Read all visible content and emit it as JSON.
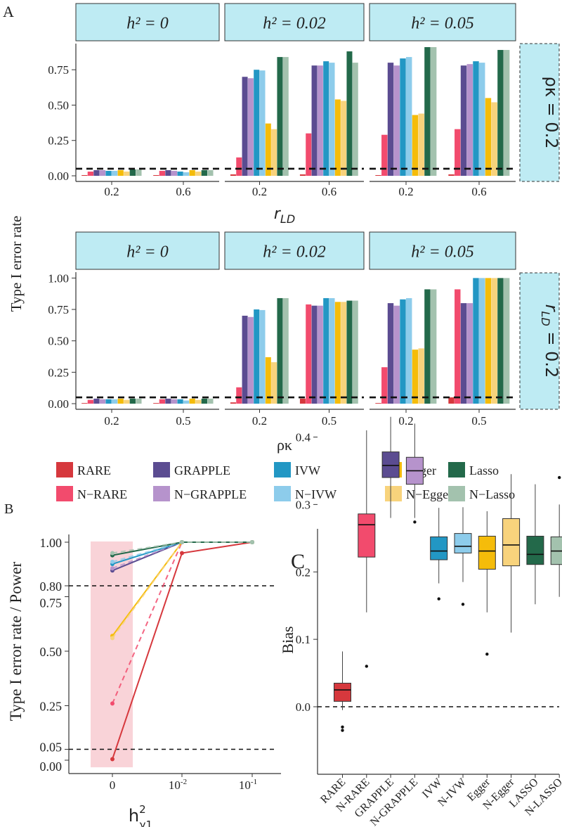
{
  "colors": {
    "RARE": "#D6383D",
    "N-RARE": "#F24B6D",
    "GRAPPLE": "#5B4C91",
    "N-GRAPPLE": "#B693CC",
    "IVW": "#2297C4",
    "N-IVW": "#8DCCEB",
    "Egger": "#F5BC0A",
    "N-Egger": "#F8D37C",
    "Lasso": "#23694A",
    "N-Lasso": "#A3C2AE",
    "strip": "#BEEBF3",
    "band": "#F9D3D8"
  },
  "panel_labels": {
    "a": "A",
    "b": "B",
    "c": "C"
  },
  "chart_data": [
    {
      "id": "A-top",
      "type": "bar",
      "ylabel": "Type I error rate",
      "xlabel": "r_LD",
      "xlabel_parts": {
        "main": "r",
        "sub": "LD"
      },
      "row_strip": "ρκ = 0.2",
      "yticks": [
        "0.00",
        "0.25",
        "0.50",
        "0.75"
      ],
      "ylim": [
        0,
        0.92
      ],
      "hline": 0.05,
      "series_names": [
        "RARE",
        "N-RARE",
        "GRAPPLE",
        "N-GRAPPLE",
        "IVW",
        "N-IVW",
        "Egger",
        "N-Egger",
        "Lasso",
        "N-Lasso"
      ],
      "facets": [
        {
          "strip": "h² = 0",
          "categories": [
            "0.2",
            "0.6"
          ],
          "values": [
            [
              0.005,
              0.03,
              0.04,
              0.04,
              0.035,
              0.035,
              0.04,
              0.03,
              0.045,
              0.045
            ],
            [
              0.005,
              0.035,
              0.04,
              0.035,
              0.03,
              0.025,
              0.04,
              0.03,
              0.04,
              0.04
            ]
          ]
        },
        {
          "strip": "h² = 0.02",
          "categories": [
            "0.2",
            "0.6"
          ],
          "values": [
            [
              0.01,
              0.13,
              0.7,
              0.69,
              0.75,
              0.745,
              0.37,
              0.33,
              0.84,
              0.84
            ],
            [
              0.01,
              0.3,
              0.78,
              0.78,
              0.81,
              0.8,
              0.54,
              0.53,
              0.88,
              0.8
            ]
          ]
        },
        {
          "strip": "h² = 0.05",
          "categories": [
            "0.2",
            "0.6"
          ],
          "values": [
            [
              0.005,
              0.29,
              0.8,
              0.78,
              0.83,
              0.84,
              0.43,
              0.44,
              0.91,
              0.91
            ],
            [
              0.01,
              0.33,
              0.78,
              0.79,
              0.81,
              0.8,
              0.55,
              0.52,
              0.89,
              0.89
            ]
          ]
        }
      ]
    },
    {
      "id": "A-bottom",
      "type": "bar",
      "xlabel": "ρκ",
      "row_strip": "r_LD = 0.2",
      "row_strip_parts": {
        "main": "r",
        "sub": "LD",
        "rest": " = 0.2"
      },
      "yticks": [
        "0.00",
        "0.25",
        "0.50",
        "0.75",
        "1.00"
      ],
      "ylim": [
        0,
        1.03
      ],
      "hline": 0.05,
      "series_names": [
        "RARE",
        "N-RARE",
        "GRAPPLE",
        "N-GRAPPLE",
        "IVW",
        "N-IVW",
        "Egger",
        "N-Egger",
        "Lasso",
        "N-Lasso"
      ],
      "facets": [
        {
          "strip": "h² = 0",
          "categories": [
            "0.2",
            "0.5"
          ],
          "values": [
            [
              0.005,
              0.03,
              0.04,
              0.035,
              0.035,
              0.035,
              0.04,
              0.03,
              0.04,
              0.04
            ],
            [
              0.005,
              0.035,
              0.04,
              0.035,
              0.035,
              0.025,
              0.04,
              0.03,
              0.04,
              0.04
            ]
          ]
        },
        {
          "strip": "h² = 0.02",
          "categories": [
            "0.2",
            "0.5"
          ],
          "values": [
            [
              0.01,
              0.13,
              0.7,
              0.69,
              0.75,
              0.745,
              0.37,
              0.33,
              0.84,
              0.84
            ],
            [
              0.04,
              0.79,
              0.78,
              0.78,
              0.84,
              0.84,
              0.81,
              0.81,
              0.82,
              0.82
            ]
          ]
        },
        {
          "strip": "h² = 0.05",
          "categories": [
            "0.2",
            "0.5"
          ],
          "values": [
            [
              0.005,
              0.29,
              0.8,
              0.78,
              0.83,
              0.84,
              0.43,
              0.44,
              0.91,
              0.91
            ],
            [
              0.05,
              0.91,
              0.8,
              0.8,
              1.0,
              1.0,
              1.0,
              1.0,
              1.0,
              1.0
            ]
          ]
        }
      ]
    },
    {
      "id": "legend",
      "type": "legend",
      "entries": [
        "RARE",
        "GRAPPLE",
        "IVW",
        "Egger",
        "Lasso",
        "N−RARE",
        "N−GRAPPLE",
        "N−IVW",
        "N−Egger",
        "N−Lasso"
      ],
      "keys": [
        "RARE",
        "GRAPPLE",
        "IVW",
        "Egger",
        "Lasso",
        "N-RARE",
        "N-GRAPPLE",
        "N-IVW",
        "N-Egger",
        "N-Lasso"
      ]
    },
    {
      "id": "B",
      "type": "line",
      "ylabel": "Type I error rate / Power",
      "xlabel": "h²γ1",
      "xlabel_parts": {
        "main": "h",
        "sup": "2",
        "sub": "γ1"
      },
      "categories": [
        "0",
        "10⁻²",
        "10⁻¹"
      ],
      "tick_labels": {
        "zero": "0",
        "base": "10",
        "exp2": "-2",
        "exp1": "-1"
      },
      "yticks": [
        "0.00",
        "0.05",
        "0.25",
        "0.50",
        "0.75",
        "0.80",
        "1.00"
      ],
      "ylim": [
        0,
        1.02
      ],
      "hlines": [
        0.05,
        0.8
      ],
      "series": [
        {
          "name": "RARE",
          "dashed": false,
          "values": [
            0.005,
            0.95,
            1.0
          ]
        },
        {
          "name": "N-RARE",
          "dashed": true,
          "values": [
            0.26,
            1.0,
            1.0
          ]
        },
        {
          "name": "GRAPPLE",
          "dashed": false,
          "values": [
            0.87,
            1.0,
            1.0
          ]
        },
        {
          "name": "N-GRAPPLE",
          "dashed": true,
          "values": [
            0.88,
            1.0,
            1.0
          ]
        },
        {
          "name": "IVW",
          "dashed": false,
          "values": [
            0.9,
            1.0,
            1.0
          ]
        },
        {
          "name": "N-IVW",
          "dashed": true,
          "values": [
            0.91,
            1.0,
            1.0
          ]
        },
        {
          "name": "Egger",
          "dashed": false,
          "values": [
            0.57,
            1.0,
            1.0
          ]
        },
        {
          "name": "N-Egger",
          "dashed": true,
          "values": [
            0.56,
            1.0,
            1.0
          ]
        },
        {
          "name": "Lasso",
          "dashed": false,
          "values": [
            0.94,
            1.0,
            1.0
          ]
        },
        {
          "name": "N-Lasso",
          "dashed": true,
          "values": [
            0.95,
            1.0,
            1.0
          ]
        }
      ]
    },
    {
      "id": "C",
      "type": "box",
      "ylabel": "Bias",
      "yticks": [
        "0.0",
        "0.1",
        "0.2",
        "0.3",
        "0.4"
      ],
      "ylim": [
        -0.06,
        0.45
      ],
      "hline": 0,
      "categories": [
        "RARE",
        "N-RARE",
        "GRAPPLE",
        "N-GRAPPLE",
        "IVW",
        "N-IVW",
        "Egger",
        "N-Egger",
        "LASSO",
        "N-LASSO"
      ],
      "color_keys": [
        "RARE",
        "N-RARE",
        "GRAPPLE",
        "N-GRAPPLE",
        "IVW",
        "N-IVW",
        "Egger",
        "N-Egger",
        "Lasso",
        "N-Lasso"
      ],
      "boxes": [
        {
          "min": -0.005,
          "q1": 0.008,
          "median": 0.025,
          "q3": 0.035,
          "max": 0.082,
          "outliers": [
            -0.03,
            -0.035
          ]
        },
        {
          "min": 0.14,
          "q1": 0.222,
          "median": 0.27,
          "q3": 0.286,
          "max": 0.41,
          "outliers": [
            0.06
          ]
        },
        {
          "min": 0.28,
          "q1": 0.34,
          "median": 0.358,
          "q3": 0.378,
          "max": 0.43,
          "outliers": []
        },
        {
          "min": 0.28,
          "q1": 0.33,
          "median": 0.35,
          "q3": 0.37,
          "max": 0.42,
          "outliers": [
            0.274
          ]
        },
        {
          "min": 0.183,
          "q1": 0.218,
          "median": 0.231,
          "q3": 0.252,
          "max": 0.295,
          "outliers": [
            0.16
          ]
        },
        {
          "min": 0.185,
          "q1": 0.228,
          "median": 0.238,
          "q3": 0.257,
          "max": 0.296,
          "outliers": [
            0.152
          ]
        },
        {
          "min": 0.14,
          "q1": 0.204,
          "median": 0.231,
          "q3": 0.253,
          "max": 0.29,
          "outliers": [
            0.078
          ]
        },
        {
          "min": 0.11,
          "q1": 0.209,
          "median": 0.24,
          "q3": 0.279,
          "max": 0.345,
          "outliers": []
        },
        {
          "min": 0.152,
          "q1": 0.211,
          "median": 0.226,
          "q3": 0.253,
          "max": 0.33,
          "outliers": []
        },
        {
          "min": 0.163,
          "q1": 0.211,
          "median": 0.231,
          "q3": 0.252,
          "max": 0.3,
          "outliers": [
            0.34
          ]
        }
      ]
    }
  ]
}
